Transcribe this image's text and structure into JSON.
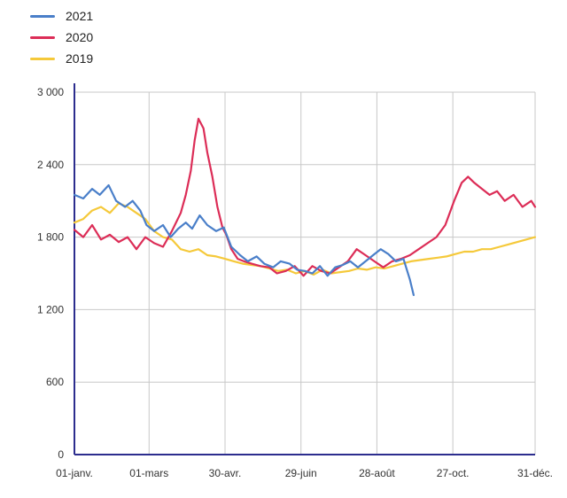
{
  "chart_data": {
    "type": "line",
    "title": "",
    "xlabel": "",
    "ylabel": "",
    "ylim": [
      0,
      3000
    ],
    "y_ticks": [
      0,
      600,
      1200,
      1800,
      2400,
      3000
    ],
    "y_tick_labels": [
      "0",
      "600",
      "1 200",
      "1 800",
      "2 400",
      "3 000"
    ],
    "x_tick_days": [
      0,
      59,
      119,
      179,
      239,
      299,
      364
    ],
    "x_tick_labels": [
      "01-janv.",
      "01-mars",
      "30-avr.",
      "29-juin",
      "28-août",
      "27-oct.",
      "31-déc."
    ],
    "grid": true,
    "legend_position": "top-left",
    "series": [
      {
        "name": "2021",
        "color": "#4a7fc9",
        "x": [
          0,
          7,
          14,
          20,
          27,
          33,
          40,
          46,
          52,
          57,
          63,
          70,
          76,
          82,
          88,
          93,
          99,
          105,
          112,
          118,
          124,
          131,
          137,
          144,
          150,
          157,
          163,
          170,
          176,
          182,
          188,
          194,
          200,
          206,
          212,
          218,
          224,
          230,
          236,
          242,
          248,
          254,
          260,
          265,
          268
        ],
        "y": [
          2150,
          2120,
          2200,
          2150,
          2230,
          2100,
          2050,
          2100,
          2020,
          1900,
          1850,
          1900,
          1800,
          1870,
          1920,
          1870,
          1980,
          1900,
          1850,
          1880,
          1720,
          1650,
          1600,
          1640,
          1580,
          1550,
          1600,
          1580,
          1530,
          1520,
          1500,
          1560,
          1480,
          1550,
          1570,
          1600,
          1550,
          1600,
          1650,
          1700,
          1660,
          1600,
          1620,
          1450,
          1320
        ]
      },
      {
        "name": "2020",
        "color": "#dc2d57",
        "x": [
          0,
          7,
          14,
          21,
          28,
          35,
          42,
          49,
          56,
          63,
          70,
          77,
          84,
          88,
          92,
          95,
          98,
          102,
          105,
          109,
          113,
          117,
          120,
          124,
          129,
          134,
          140,
          147,
          154,
          160,
          167,
          174,
          181,
          188,
          195,
          202,
          209,
          216,
          223,
          230,
          237,
          244,
          251,
          258,
          265,
          272,
          279,
          286,
          293,
          300,
          306,
          311,
          316,
          322,
          328,
          334,
          340,
          347,
          354,
          361,
          364
        ],
        "y": [
          1860,
          1800,
          1900,
          1780,
          1820,
          1760,
          1800,
          1700,
          1800,
          1750,
          1720,
          1850,
          2000,
          2150,
          2350,
          2600,
          2780,
          2700,
          2500,
          2300,
          2050,
          1880,
          1820,
          1700,
          1620,
          1600,
          1580,
          1560,
          1550,
          1500,
          1520,
          1560,
          1480,
          1560,
          1520,
          1500,
          1550,
          1600,
          1700,
          1650,
          1600,
          1550,
          1600,
          1620,
          1650,
          1700,
          1750,
          1800,
          1900,
          2100,
          2250,
          2300,
          2250,
          2200,
          2150,
          2180,
          2100,
          2150,
          2050,
          2100,
          2050
        ]
      },
      {
        "name": "2019",
        "color": "#f5c93a",
        "x": [
          0,
          7,
          14,
          21,
          28,
          35,
          42,
          49,
          56,
          63,
          70,
          77,
          84,
          91,
          98,
          105,
          112,
          119,
          126,
          133,
          140,
          147,
          154,
          161,
          168,
          175,
          182,
          189,
          196,
          203,
          210,
          217,
          224,
          231,
          238,
          245,
          252,
          259,
          266,
          273,
          280,
          287,
          294,
          301,
          308,
          315,
          322,
          329,
          336,
          343,
          350,
          357,
          364
        ],
        "y": [
          1920,
          1950,
          2020,
          2050,
          2000,
          2080,
          2050,
          2000,
          1950,
          1850,
          1800,
          1780,
          1700,
          1680,
          1700,
          1650,
          1640,
          1620,
          1600,
          1580,
          1570,
          1560,
          1540,
          1520,
          1530,
          1500,
          1520,
          1490,
          1530,
          1500,
          1510,
          1520,
          1540,
          1530,
          1550,
          1540,
          1560,
          1580,
          1600,
          1610,
          1620,
          1630,
          1640,
          1660,
          1680,
          1680,
          1700,
          1700,
          1720,
          1740,
          1760,
          1780,
          1800
        ]
      }
    ]
  }
}
